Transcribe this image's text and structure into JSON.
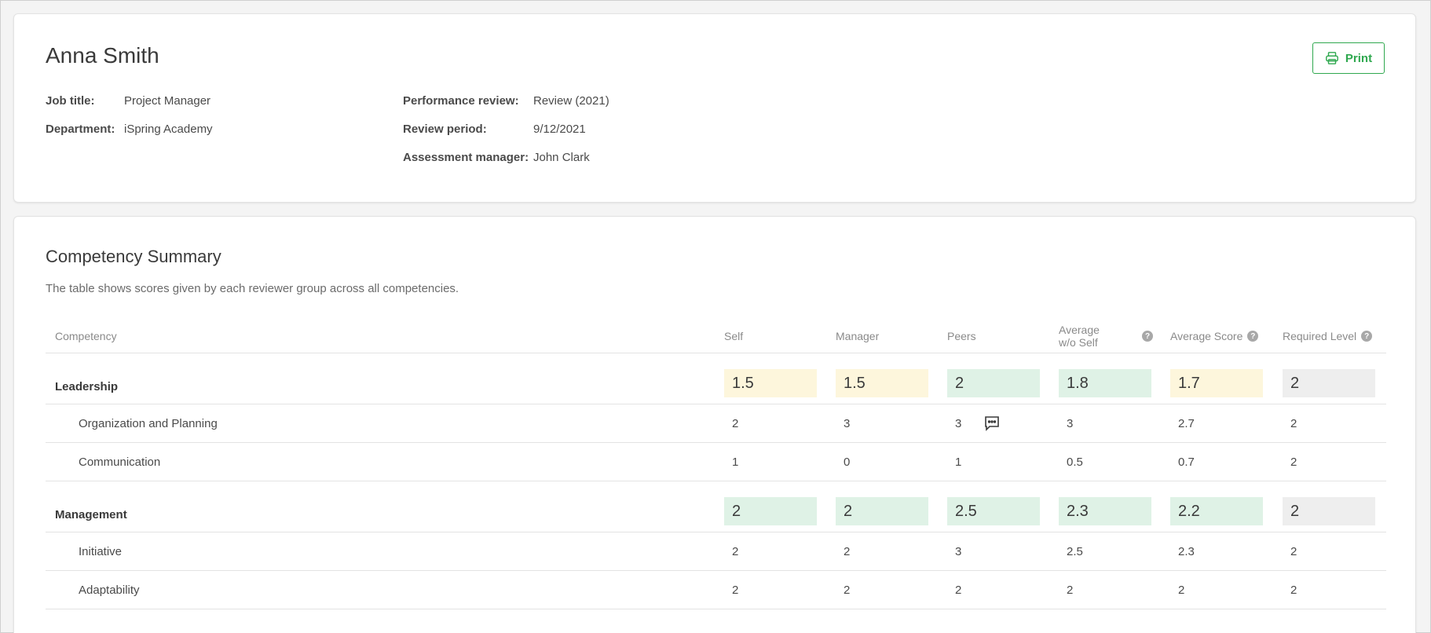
{
  "employee": {
    "name": "Anna Smith",
    "print_label": "Print",
    "job_title_label": "Job title:",
    "job_title": "Project Manager",
    "department_label": "Department:",
    "department": "iSpring Academy",
    "performance_review_label": "Performance review:",
    "performance_review": "Review (2021)",
    "review_period_label": "Review period:",
    "review_period": "9/12/2021",
    "assessment_manager_label": "Assessment manager:",
    "assessment_manager": "John Clark"
  },
  "summary": {
    "title": "Competency Summary",
    "description": "The table shows scores given by each reviewer group across all competencies.",
    "columns": {
      "competency": "Competency",
      "self": "Self",
      "manager": "Manager",
      "peers": "Peers",
      "avg_wo_self": "Average w/o Self",
      "avg_score": "Average Score",
      "required": "Required Level",
      "help_glyph": "?"
    },
    "groups": [
      {
        "name": "Leadership",
        "scores": [
          "1.5",
          "1.5",
          "2",
          "1.8",
          "1.7",
          "2"
        ],
        "colors": [
          "#fdf6dc",
          "#fdf6dc",
          "#dff2e6",
          "#dff2e6",
          "#fdf6dc",
          "#eeeeee"
        ],
        "items": [
          {
            "name": "Organization and Planning",
            "scores": [
              "2",
              "3",
              "3",
              "3",
              "2.7",
              "2"
            ],
            "comment_on_peers": true
          },
          {
            "name": "Communication",
            "scores": [
              "1",
              "0",
              "1",
              "0.5",
              "0.7",
              "2"
            ],
            "comment_on_peers": false
          }
        ]
      },
      {
        "name": "Management",
        "scores": [
          "2",
          "2",
          "2.5",
          "2.3",
          "2.2",
          "2"
        ],
        "colors": [
          "#dff2e6",
          "#dff2e6",
          "#dff2e6",
          "#dff2e6",
          "#dff2e6",
          "#eeeeee"
        ],
        "items": [
          {
            "name": "Initiative",
            "scores": [
              "2",
              "2",
              "3",
              "2.5",
              "2.3",
              "2"
            ],
            "comment_on_peers": false
          },
          {
            "name": "Adaptability",
            "scores": [
              "2",
              "2",
              "2",
              "2",
              "2",
              "2"
            ],
            "comment_on_peers": false
          }
        ]
      }
    ]
  },
  "colors": {
    "accent_green": "#2fa84f",
    "score_yellow": "#fdf6dc",
    "score_green": "#dff2e6",
    "score_gray": "#eeeeee"
  },
  "icons": {
    "print": "printer-icon",
    "comment": "comment-icon",
    "help": "help-icon"
  }
}
